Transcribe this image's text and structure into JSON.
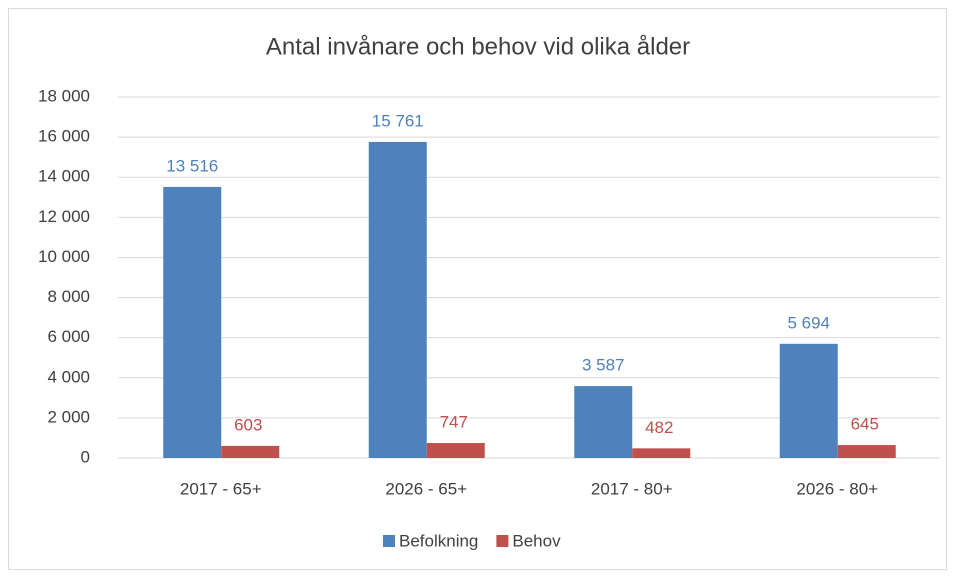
{
  "chart_data": {
    "type": "bar",
    "title": "Antal invånare och behov vid olika ålder",
    "categories": [
      "2017 - 65+",
      "2026 - 65+",
      "2017 - 80+",
      "2026 - 80+"
    ],
    "series": [
      {
        "name": "Befolkning",
        "color": "#4f81bd",
        "values": [
          13516,
          15761,
          3587,
          5694
        ],
        "value_labels": [
          "13 516",
          "15 761",
          "3 587",
          "5 694"
        ]
      },
      {
        "name": "Behov",
        "color": "#c0504d",
        "values": [
          603,
          747,
          482,
          645
        ]
      }
    ],
    "ylim": [
      0,
      18000
    ],
    "yticks": [
      0,
      {
        "value": 2000,
        "label": "2 000"
      },
      {
        "value": 4000,
        "label": "4 000"
      },
      {
        "value": 6000,
        "label": "6 000"
      },
      {
        "value": 8000,
        "label": "8 000"
      },
      {
        "value": 10000,
        "label": "10 000"
      },
      {
        "value": 12000,
        "label": "12 000"
      },
      {
        "value": 14000,
        "label": "14 000"
      },
      {
        "value": 16000,
        "label": "16 000"
      },
      {
        "value": 18000,
        "label": "18 000"
      }
    ],
    "grid": true,
    "legend": "bottom"
  }
}
